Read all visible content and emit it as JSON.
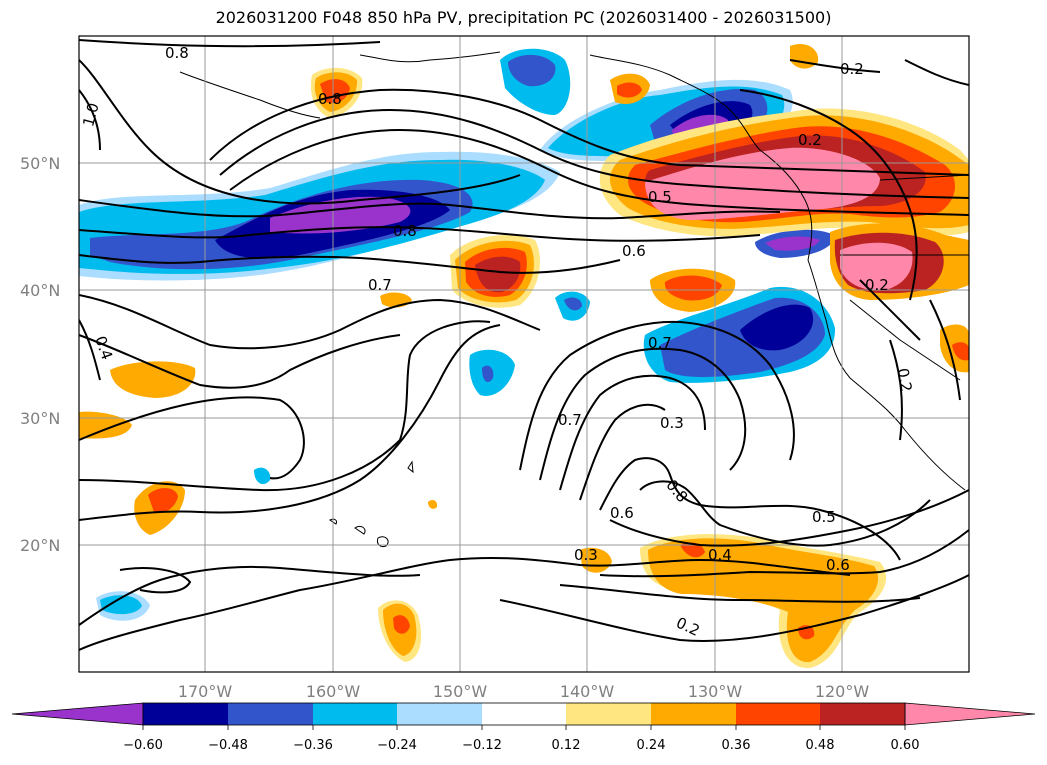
{
  "title": "2026031200 F048 850 hPa PV, precipitation PC (2026031400 - 2026031500)",
  "map": {
    "lat_labels": [
      "50°N",
      "40°N",
      "30°N",
      "20°N"
    ],
    "lon_labels": [
      "170°W",
      "160°W",
      "150°W",
      "140°W",
      "130°W",
      "120°W"
    ],
    "contour_labels": [
      "0.8",
      "0.8",
      "1.0",
      "0.2",
      "0.2",
      "0.5",
      "0.8",
      "0.6",
      "0.7",
      "0.2",
      "0.4",
      "0.7",
      "0.7",
      "0.3",
      "0.8",
      "0.6",
      "0.5",
      "0.3",
      "0.4",
      "0.6",
      "0.2",
      "0.2"
    ]
  },
  "colorbar": {
    "ticks": [
      "−0.60",
      "−0.48",
      "−0.36",
      "−0.24",
      "−0.12",
      "0.12",
      "0.24",
      "0.36",
      "0.48",
      "0.60"
    ],
    "colors": {
      "lt_m060": "#9933cc",
      "m060_m048": "#000099",
      "m048_m036": "#3355cc",
      "m036_m024": "#00bbee",
      "m024_m012": "#aaddff",
      "m012_012": "#ffffff",
      "p012_024": "#ffe680",
      "p024_036": "#ffaa00",
      "p036_048": "#ff4400",
      "p048_060": "#bb2222",
      "gt_060": "#ff88aa"
    }
  }
}
